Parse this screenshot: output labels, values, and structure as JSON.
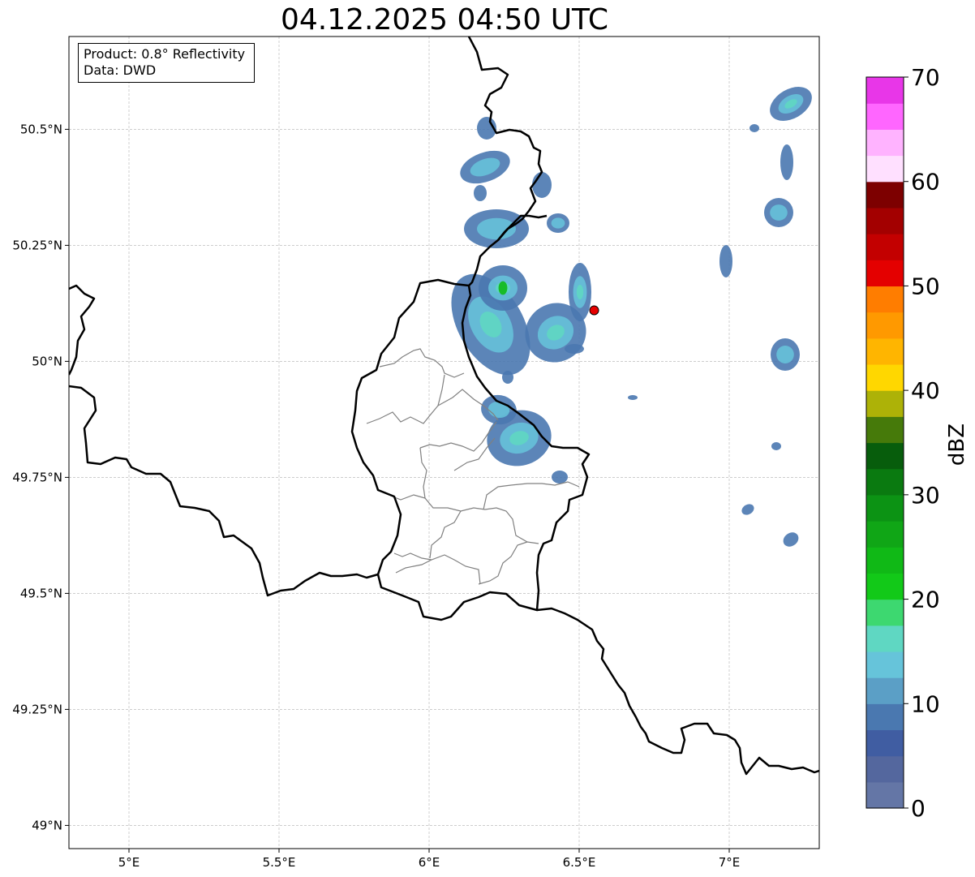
{
  "title": "04.12.2025 04:50 UTC",
  "info": {
    "product": "Product: 0.8° Reflectivity",
    "data": "Data: DWD"
  },
  "axes": {
    "x_ticks": [
      "5°E",
      "5.5°E",
      "6°E",
      "6.5°E",
      "7°E"
    ],
    "x_tick_values": [
      5.0,
      5.5,
      6.0,
      6.5,
      7.0
    ],
    "y_ticks": [
      "50.5°N",
      "50.25°N",
      "50°N",
      "49.75°N",
      "49.5°N",
      "49.25°N",
      "49°N"
    ],
    "y_tick_values": [
      50.5,
      50.25,
      50.0,
      49.75,
      49.5,
      49.25,
      49.0
    ],
    "lon_range": [
      4.8,
      7.3
    ],
    "lat_range": [
      48.95,
      50.7
    ]
  },
  "colorbar": {
    "label": "dBZ",
    "ticks": [
      "0",
      "10",
      "20",
      "30",
      "40",
      "50",
      "60",
      "70"
    ],
    "tick_values": [
      0,
      10,
      20,
      30,
      40,
      50,
      60,
      70
    ],
    "min": 0,
    "max": 70,
    "colors": [
      "#6476a6",
      "#54679e",
      "#405da2",
      "#4a78b0",
      "#5b9fc6",
      "#66c4da",
      "#5fd7c2",
      "#3dd870",
      "#12c918",
      "#10b916",
      "#10a616",
      "#0c9314",
      "#0a7a10",
      "#075d0c",
      "#467a0a",
      "#adb207",
      "#ffd700",
      "#ffb500",
      "#ff9900",
      "#ff7d00",
      "#e40000",
      "#c30000",
      "#a30000",
      "#7d0000",
      "#ffe0ff",
      "#ffb3ff",
      "#ff66ff",
      "#e836e8"
    ]
  },
  "marker": {
    "lon": 6.55,
    "lat": 50.11,
    "color": "#e60000"
  },
  "colors": {
    "border": "#000000",
    "admin": "#808080",
    "grid": "#b0b0b0"
  }
}
